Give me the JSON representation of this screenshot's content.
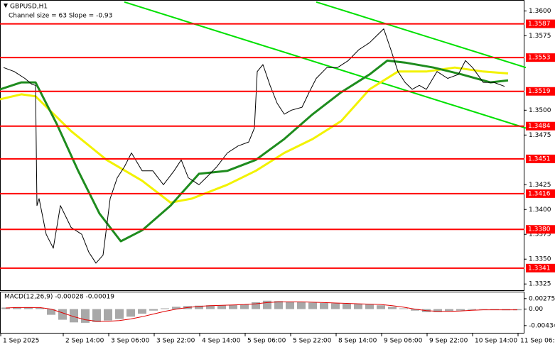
{
  "chart_data": [
    {
      "type": "line",
      "title": "GBPUSD,H1",
      "subtitle": "Channel size = 63 Slope = -0.93",
      "xlim": [
        0,
        184.5
      ],
      "ylim": [
        1.3318,
        1.3611
      ],
      "xticks": [
        {
          "value": 0,
          "label": "1 Sep 2025"
        },
        {
          "value": 22,
          "label": "2 Sep 14:00"
        },
        {
          "value": 38,
          "label": "3 Sep 06:00"
        },
        {
          "value": 54,
          "label": "3 Sep 22:00"
        },
        {
          "value": 70,
          "label": "4 Sep 14:00"
        },
        {
          "value": 86,
          "label": "5 Sep 06:00"
        },
        {
          "value": 102,
          "label": "5 Sep 22:00"
        },
        {
          "value": 118,
          "label": "8 Sep 14:00"
        },
        {
          "value": 134,
          "label": "9 Sep 06:00"
        },
        {
          "value": 150,
          "label": "9 Sep 22:00"
        },
        {
          "value": 166,
          "label": "10 Sep 14:00"
        },
        {
          "value": 182,
          "label": "11 Sep 06:00"
        }
      ],
      "yticks": [
        {
          "value": 1.36,
          "label": "1.3600"
        },
        1.3575,
        {
          "value": 1.35,
          "label": "1.3500"
        },
        1.3475,
        1.3425,
        {
          "value": 1.34,
          "label": "1.3400"
        },
        1.3375,
        {
          "value": 1.335,
          "label": "1.3350"
        },
        1.3325
      ],
      "levels": [
        1.3587,
        1.3553,
        1.3519,
        1.3484,
        1.3451,
        1.3416,
        {
          "value": 1.338,
          "label": "1.3380"
        },
        1.3341
      ],
      "level_color": "#ff0000",
      "series": [
        {
          "color": "#00e000",
          "width": 2,
          "x": [
            43.75,
            185
          ],
          "values": [
            1.3609,
            1.3482
          ]
        },
        {
          "color": "#00e000",
          "width": 2,
          "x": [
            111.25,
            185
          ],
          "values": [
            1.3609,
            1.3543
          ]
        },
        {
          "color": "#f2f200",
          "width": 3,
          "x": [
            0,
            7.5,
            12.5,
            25,
            37.5,
            50,
            60,
            67.5,
            80,
            90,
            100,
            110,
            120,
            130,
            140,
            150,
            160,
            170,
            178.75
          ],
          "values": [
            1.3511,
            1.3516,
            1.3514,
            1.3479,
            1.345,
            1.3429,
            1.3407,
            1.3411,
            1.3425,
            1.3439,
            1.3457,
            1.3471,
            1.3489,
            1.3521,
            1.3539,
            1.3539,
            1.3543,
            1.3539,
            1.3537
          ]
        },
        {
          "color": "#1e8c1e",
          "width": 3,
          "x": [
            0,
            7.5,
            12.5,
            20,
            27.5,
            35,
            42.5,
            50,
            60,
            70,
            80,
            90,
            100,
            110,
            120,
            130,
            136.25,
            142.5,
            152.5,
            162.5,
            172.5,
            178.75
          ],
          "values": [
            1.3521,
            1.3528,
            1.3528,
            1.3486,
            1.3439,
            1.3396,
            1.3368,
            1.3379,
            1.3404,
            1.3436,
            1.3439,
            1.345,
            1.3471,
            1.3496,
            1.3518,
            1.3536,
            1.355,
            1.3548,
            1.3543,
            1.3536,
            1.3528,
            1.353
          ]
        },
        {
          "color": "#000000",
          "width": 1,
          "x": [
            1.25,
            5,
            8.75,
            11.25,
            12.5,
            13,
            13.75,
            16.25,
            18.75,
            21.25,
            25,
            28.75,
            31.25,
            33.75,
            36.25,
            38.75,
            41.25,
            43.75,
            46.25,
            50,
            53.75,
            57.5,
            61.25,
            63.75,
            66.25,
            70,
            72.5,
            76.25,
            80,
            83.75,
            87.5,
            89.5,
            90.5,
            92.5,
            95,
            97.5,
            100,
            102.5,
            106.25,
            108.75,
            111.25,
            115,
            118.75,
            122.5,
            126.25,
            130,
            132.5,
            135,
            137.5,
            140,
            142.5,
            145,
            147.5,
            150,
            153.75,
            157.5,
            161.25,
            163.75,
            166.25,
            170,
            173.75,
            177.5
          ],
          "values": [
            1.3543,
            1.3539,
            1.3532,
            1.3526,
            1.3525,
            1.3404,
            1.3411,
            1.3375,
            1.3361,
            1.3404,
            1.3382,
            1.3375,
            1.3357,
            1.3346,
            1.3354,
            1.3411,
            1.3432,
            1.3443,
            1.3457,
            1.3439,
            1.3439,
            1.3425,
            1.3439,
            1.345,
            1.3432,
            1.3425,
            1.3432,
            1.3443,
            1.3457,
            1.3464,
            1.3468,
            1.3482,
            1.3539,
            1.3546,
            1.3525,
            1.3507,
            1.3496,
            1.35,
            1.3503,
            1.3518,
            1.3532,
            1.3543,
            1.3543,
            1.355,
            1.3561,
            1.3568,
            1.3575,
            1.3582,
            1.3561,
            1.3539,
            1.3528,
            1.3521,
            1.3525,
            1.3521,
            1.3539,
            1.3532,
            1.3536,
            1.355,
            1.3543,
            1.3528,
            1.3528,
            1.3524
          ]
        }
      ]
    },
    {
      "type": "bar",
      "title": "MACD(12,26,9) -0.00028 -0.00019",
      "xlim": [
        0,
        184.5
      ],
      "ylim": [
        -0.00642,
        0.00458
      ],
      "color": "#a8a8a8",
      "yticks": [
        0.00275,
        {
          "value": 0,
          "label": "0.00"
        },
        -0.00434
      ],
      "x": [
        2,
        6,
        10,
        14,
        18,
        22,
        26,
        30,
        34,
        38,
        42,
        46,
        50,
        54,
        58,
        62,
        66,
        70,
        74,
        78,
        82,
        86,
        90,
        94,
        98,
        102,
        106,
        110,
        114,
        118,
        122,
        126,
        130,
        134,
        138,
        142,
        146,
        150,
        154,
        158,
        162,
        166,
        170,
        174,
        178,
        182
      ],
      "values": [
        0.0004,
        0.0005,
        0.0005,
        0.0003,
        -0.0015,
        -0.0028,
        -0.0035,
        -0.0036,
        -0.0034,
        -0.003,
        -0.0026,
        -0.002,
        -0.0012,
        -0.0004,
        0.0002,
        0.0006,
        0.0008,
        0.0009,
        0.001,
        0.001,
        0.0011,
        0.0012,
        0.0018,
        0.0022,
        0.0021,
        0.0019,
        0.0018,
        0.0017,
        0.0016,
        0.0015,
        0.0014,
        0.0013,
        0.0012,
        0.001,
        0.0006,
        0.0002,
        -0.0004,
        -0.0008,
        -0.0008,
        -0.0006,
        -0.0004,
        -0.0002,
        -0.0001,
        -0.0002,
        -0.0003,
        -0.0003
      ],
      "signal": {
        "color": "#e00000",
        "values": [
          0.0003,
          0.0004,
          0.0004,
          0.0004,
          0.0,
          -0.001,
          -0.002,
          -0.0028,
          -0.0032,
          -0.0032,
          -0.003,
          -0.0026,
          -0.002,
          -0.0013,
          -0.0006,
          0.0,
          0.0004,
          0.0007,
          0.0009,
          0.001,
          0.0011,
          0.0012,
          0.0014,
          0.0017,
          0.0019,
          0.0019,
          0.0019,
          0.0018,
          0.0017,
          0.0016,
          0.0015,
          0.0014,
          0.0013,
          0.0012,
          0.0009,
          0.0005,
          0.0,
          -0.0004,
          -0.0006,
          -0.0006,
          -0.0005,
          -0.0003,
          -0.0002,
          -0.0002,
          -0.0002,
          -0.0002
        ]
      }
    }
  ]
}
